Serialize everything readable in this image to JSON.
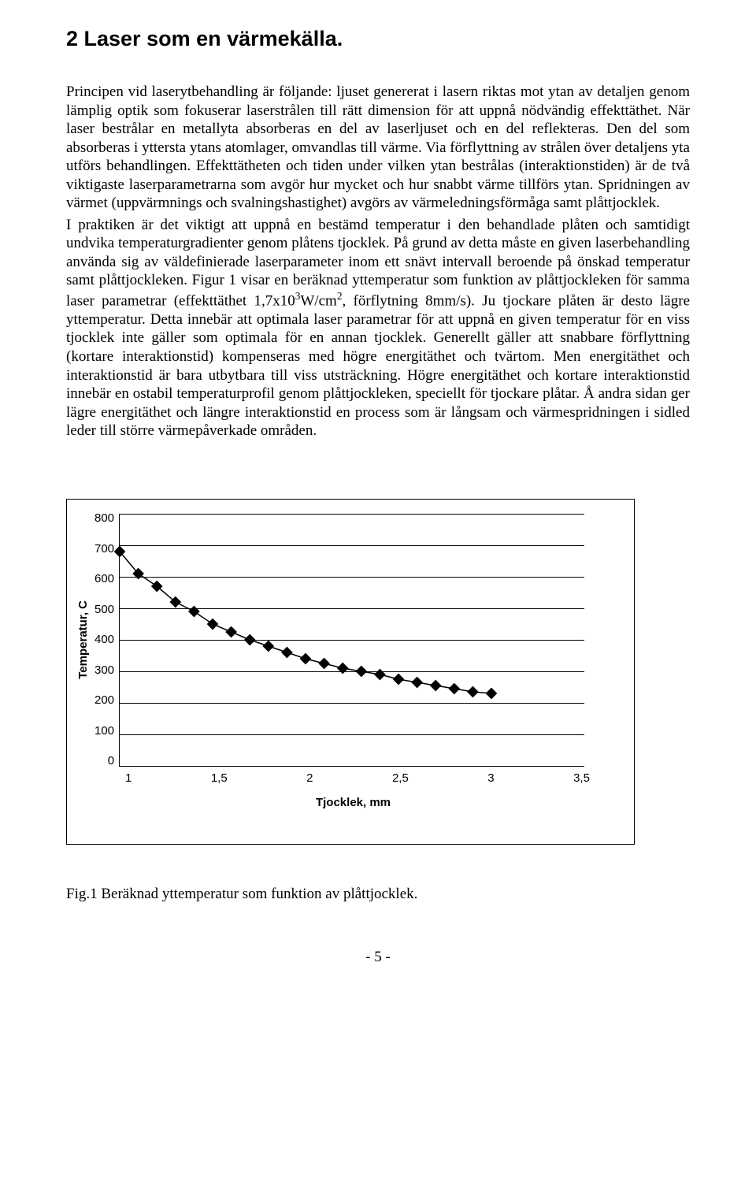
{
  "title": "2 Laser som en värmekälla.",
  "paragraph1": "Principen vid laserytbehandling är följande: ljuset genererat i lasern riktas mot ytan av detaljen genom lämplig optik som fokuserar laserstrålen till rätt dimension för att uppnå nödvändig effekttäthet. När laser bestrålar en metallyta absorberas en del av laserljuset och en del reflekteras. Den del som absorberas i yttersta ytans atomlager, omvandlas till värme. Via förflyttning av strålen över detaljens yta utförs behandlingen. Effekttätheten och tiden under vilken ytan bestrålas (interaktionstiden) är de två viktigaste laserparametrarna som avgör hur mycket och hur snabbt värme tillförs ytan. Spridningen av värmet (uppvärmnings och svalningshastighet) avgörs av värmeledningsförmåga samt plåttjocklek.",
  "paragraph2_pre": "I praktiken är det viktigt att uppnå en bestämd temperatur i den behandlade plåten och samtidigt undvika temperaturgradienter genom plåtens tjocklek. På grund av detta måste en given laserbehandling använda sig av väldefinierade laserparameter inom ett snävt intervall beroende på önskad temperatur samt plåttjockleken. Figur 1 visar en beräknad yttemperatur som funktion av plåttjockleken för samma laser parametrar (effekttäthet 1,7x10",
  "paragraph2_exp1": "3",
  "paragraph2_mid": "W/cm",
  "paragraph2_exp2": "2",
  "paragraph2_post": ", förflytning 8mm/s). Ju tjockare plåten är desto lägre yttemperatur. Detta innebär att optimala laser parametrar för att uppnå en given temperatur för en viss tjocklek inte gäller som optimala för en annan tjocklek. Generellt gäller att snabbare förflyttning (kortare interaktionstid) kompenseras med högre energitäthet och tvärtom. Men energitäthet och interaktionstid är bara utbytbara till viss utsträckning. Högre energitäthet och kortare interaktionstid innebär en ostabil temperaturprofil genom plåttjockleken, speciellt för tjockare plåtar. Å andra sidan ger lägre energitäthet och längre interaktionstid en process som är långsam och värmespridningen i sidled leder till större värmepåverkade områden.",
  "chart": {
    "type": "line",
    "ylabel": "Temperatur, C",
    "xlabel": "Tjocklek, mm",
    "xmin": 1.0,
    "xmax": 3.5,
    "ymin": 0,
    "ymax": 800,
    "yticks": [
      800,
      700,
      600,
      500,
      400,
      300,
      200,
      100,
      0
    ],
    "xticks": [
      1,
      1.5,
      2,
      2.5,
      3,
      3.5
    ],
    "xtick_labels": [
      "1",
      "1,5",
      "2",
      "2,5",
      "3",
      "3,5"
    ],
    "series_color": "#000000",
    "marker_size": 5.2,
    "line_width": 1.5,
    "background_color": "#ffffff",
    "grid_color": "#000000",
    "xvals": [
      1.0,
      1.1,
      1.2,
      1.3,
      1.4,
      1.5,
      1.6,
      1.7,
      1.8,
      1.9,
      2.0,
      2.1,
      2.2,
      2.3,
      2.4,
      2.5,
      2.6,
      2.7,
      2.8,
      2.9,
      3.0
    ],
    "yvals": [
      680,
      610,
      570,
      520,
      490,
      450,
      425,
      400,
      380,
      360,
      340,
      325,
      310,
      300,
      290,
      275,
      265,
      255,
      245,
      235,
      230
    ]
  },
  "fig_caption": "Fig.1  Beräknad yttemperatur som funktion av plåttjocklek.",
  "page_number": "- 5 -"
}
